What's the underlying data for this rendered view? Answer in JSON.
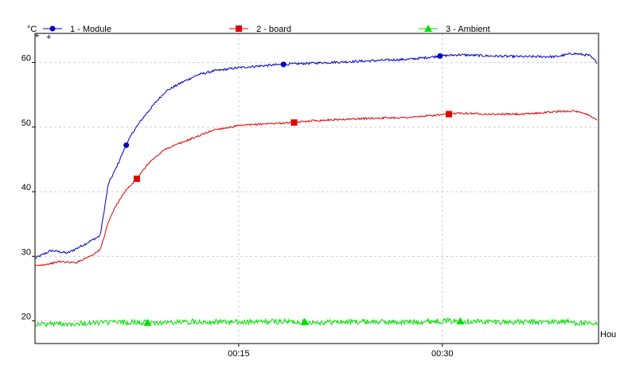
{
  "chart_data": {
    "type": "line",
    "title": "",
    "y_unit_label": "°C",
    "x_unit_label": "Hou",
    "ylim": [
      16.5,
      64.5
    ],
    "xlim": [
      0,
      0.6917
    ],
    "y_ticks": [
      20,
      30,
      40,
      50,
      60
    ],
    "x_ticks": [
      {
        "value": 0.25,
        "label": "00:15"
      },
      {
        "value": 0.5,
        "label": "00:30"
      }
    ],
    "grid": true,
    "legend_position": "top",
    "series": [
      {
        "name": "1 - Module",
        "color": "#0000c0",
        "marker": "circle",
        "markers_at": [
          0.112,
          0.305,
          0.497
        ],
        "x": [
          0,
          0.02,
          0.04,
          0.06,
          0.08,
          0.09,
          0.1,
          0.11,
          0.12,
          0.13,
          0.14,
          0.15,
          0.16,
          0.18,
          0.2,
          0.22,
          0.25,
          0.28,
          0.305,
          0.34,
          0.38,
          0.42,
          0.46,
          0.497,
          0.52,
          0.56,
          0.6,
          0.64,
          0.66,
          0.68,
          0.69
        ],
        "values": [
          29.7,
          30.9,
          30.5,
          31.8,
          33.2,
          41.2,
          43.8,
          46.7,
          49.2,
          51.0,
          52.6,
          54.1,
          55.5,
          56.9,
          58.1,
          58.7,
          59.2,
          59.5,
          59.7,
          59.9,
          60.1,
          60.3,
          60.5,
          61.0,
          61.2,
          61.0,
          60.9,
          60.9,
          61.4,
          61.1,
          60.0
        ]
      },
      {
        "name": "2 - board",
        "color": "#e00000",
        "marker": "square",
        "markers_at": [
          0.125,
          0.318,
          0.508
        ],
        "x": [
          0,
          0.02,
          0.03,
          0.05,
          0.07,
          0.08,
          0.09,
          0.1,
          0.11,
          0.125,
          0.14,
          0.16,
          0.18,
          0.2,
          0.22,
          0.25,
          0.28,
          0.318,
          0.34,
          0.38,
          0.42,
          0.46,
          0.508,
          0.52,
          0.56,
          0.6,
          0.64,
          0.66,
          0.68,
          0.69
        ],
        "values": [
          28.5,
          28.9,
          29.2,
          29.0,
          30.2,
          31.0,
          35.3,
          38.0,
          40.0,
          42.0,
          44.5,
          46.6,
          47.6,
          48.6,
          49.6,
          50.2,
          50.5,
          50.7,
          51.0,
          51.2,
          51.4,
          51.5,
          52.0,
          52.2,
          52.0,
          52.0,
          52.4,
          52.5,
          51.9,
          51.0
        ]
      },
      {
        "name": "3 - Ambient",
        "color": "#00e000",
        "marker": "triangle",
        "markers_at": [
          0.138,
          0.331,
          0.522
        ],
        "x": [
          0,
          0.05,
          0.1,
          0.15,
          0.2,
          0.25,
          0.3,
          0.35,
          0.4,
          0.45,
          0.5,
          0.55,
          0.6,
          0.65,
          0.69
        ],
        "values": [
          19.5,
          19.6,
          19.8,
          19.7,
          19.9,
          19.8,
          19.9,
          19.8,
          19.9,
          19.8,
          20.0,
          19.9,
          19.8,
          19.9,
          19.4
        ]
      }
    ]
  }
}
